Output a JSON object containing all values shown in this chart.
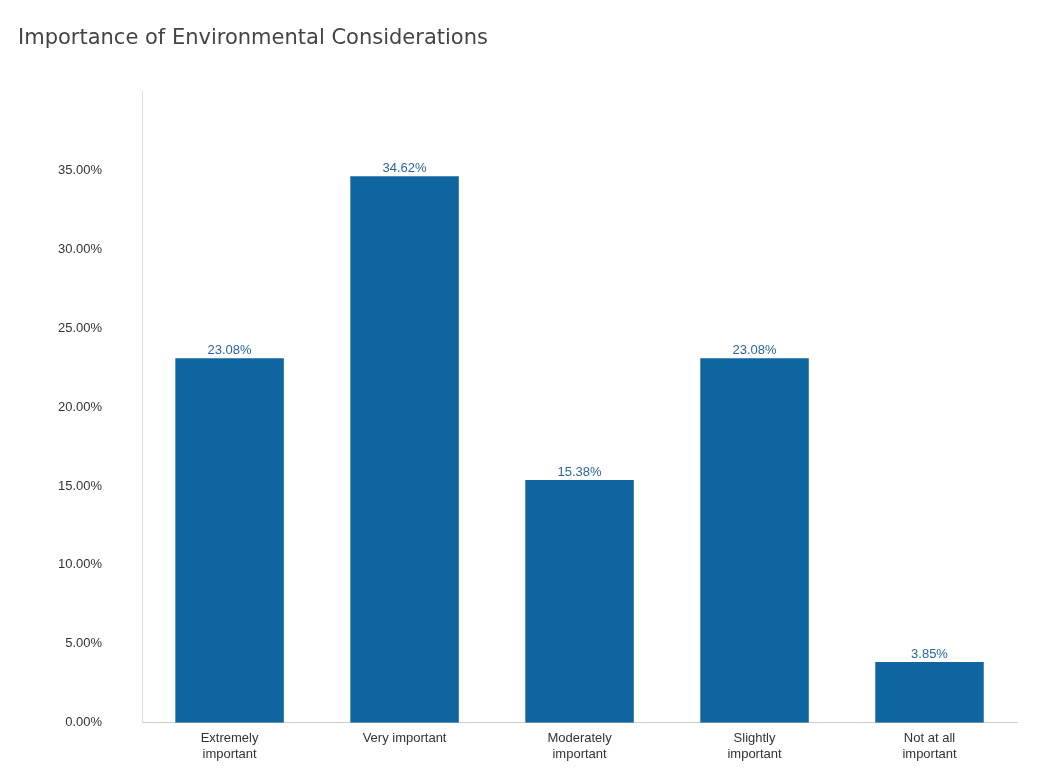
{
  "chart_data": {
    "type": "bar",
    "title": "Importance of Environmental Considerations",
    "categories": [
      "Extremely important",
      "Very important",
      "Moderately important",
      "Slightly important",
      "Not at all important"
    ],
    "values": [
      23.08,
      34.62,
      15.38,
      23.08,
      3.85
    ],
    "value_labels": [
      "23.08%",
      "34.62%",
      "15.38%",
      "23.08%",
      "3.85%"
    ],
    "color": "#0e65a0",
    "ylim": [
      0,
      40
    ],
    "yticks": [
      {
        "value": 0,
        "label": "0.00%"
      },
      {
        "value": 5,
        "label": "5.00%"
      },
      {
        "value": 10,
        "label": "10.00%"
      },
      {
        "value": 15,
        "label": "15.00%"
      },
      {
        "value": 20,
        "label": "20.00%"
      },
      {
        "value": 25,
        "label": "25.00%"
      },
      {
        "value": 30,
        "label": "30.00%"
      },
      {
        "value": 35,
        "label": "35.00%"
      }
    ],
    "grid": false,
    "legend": false
  }
}
